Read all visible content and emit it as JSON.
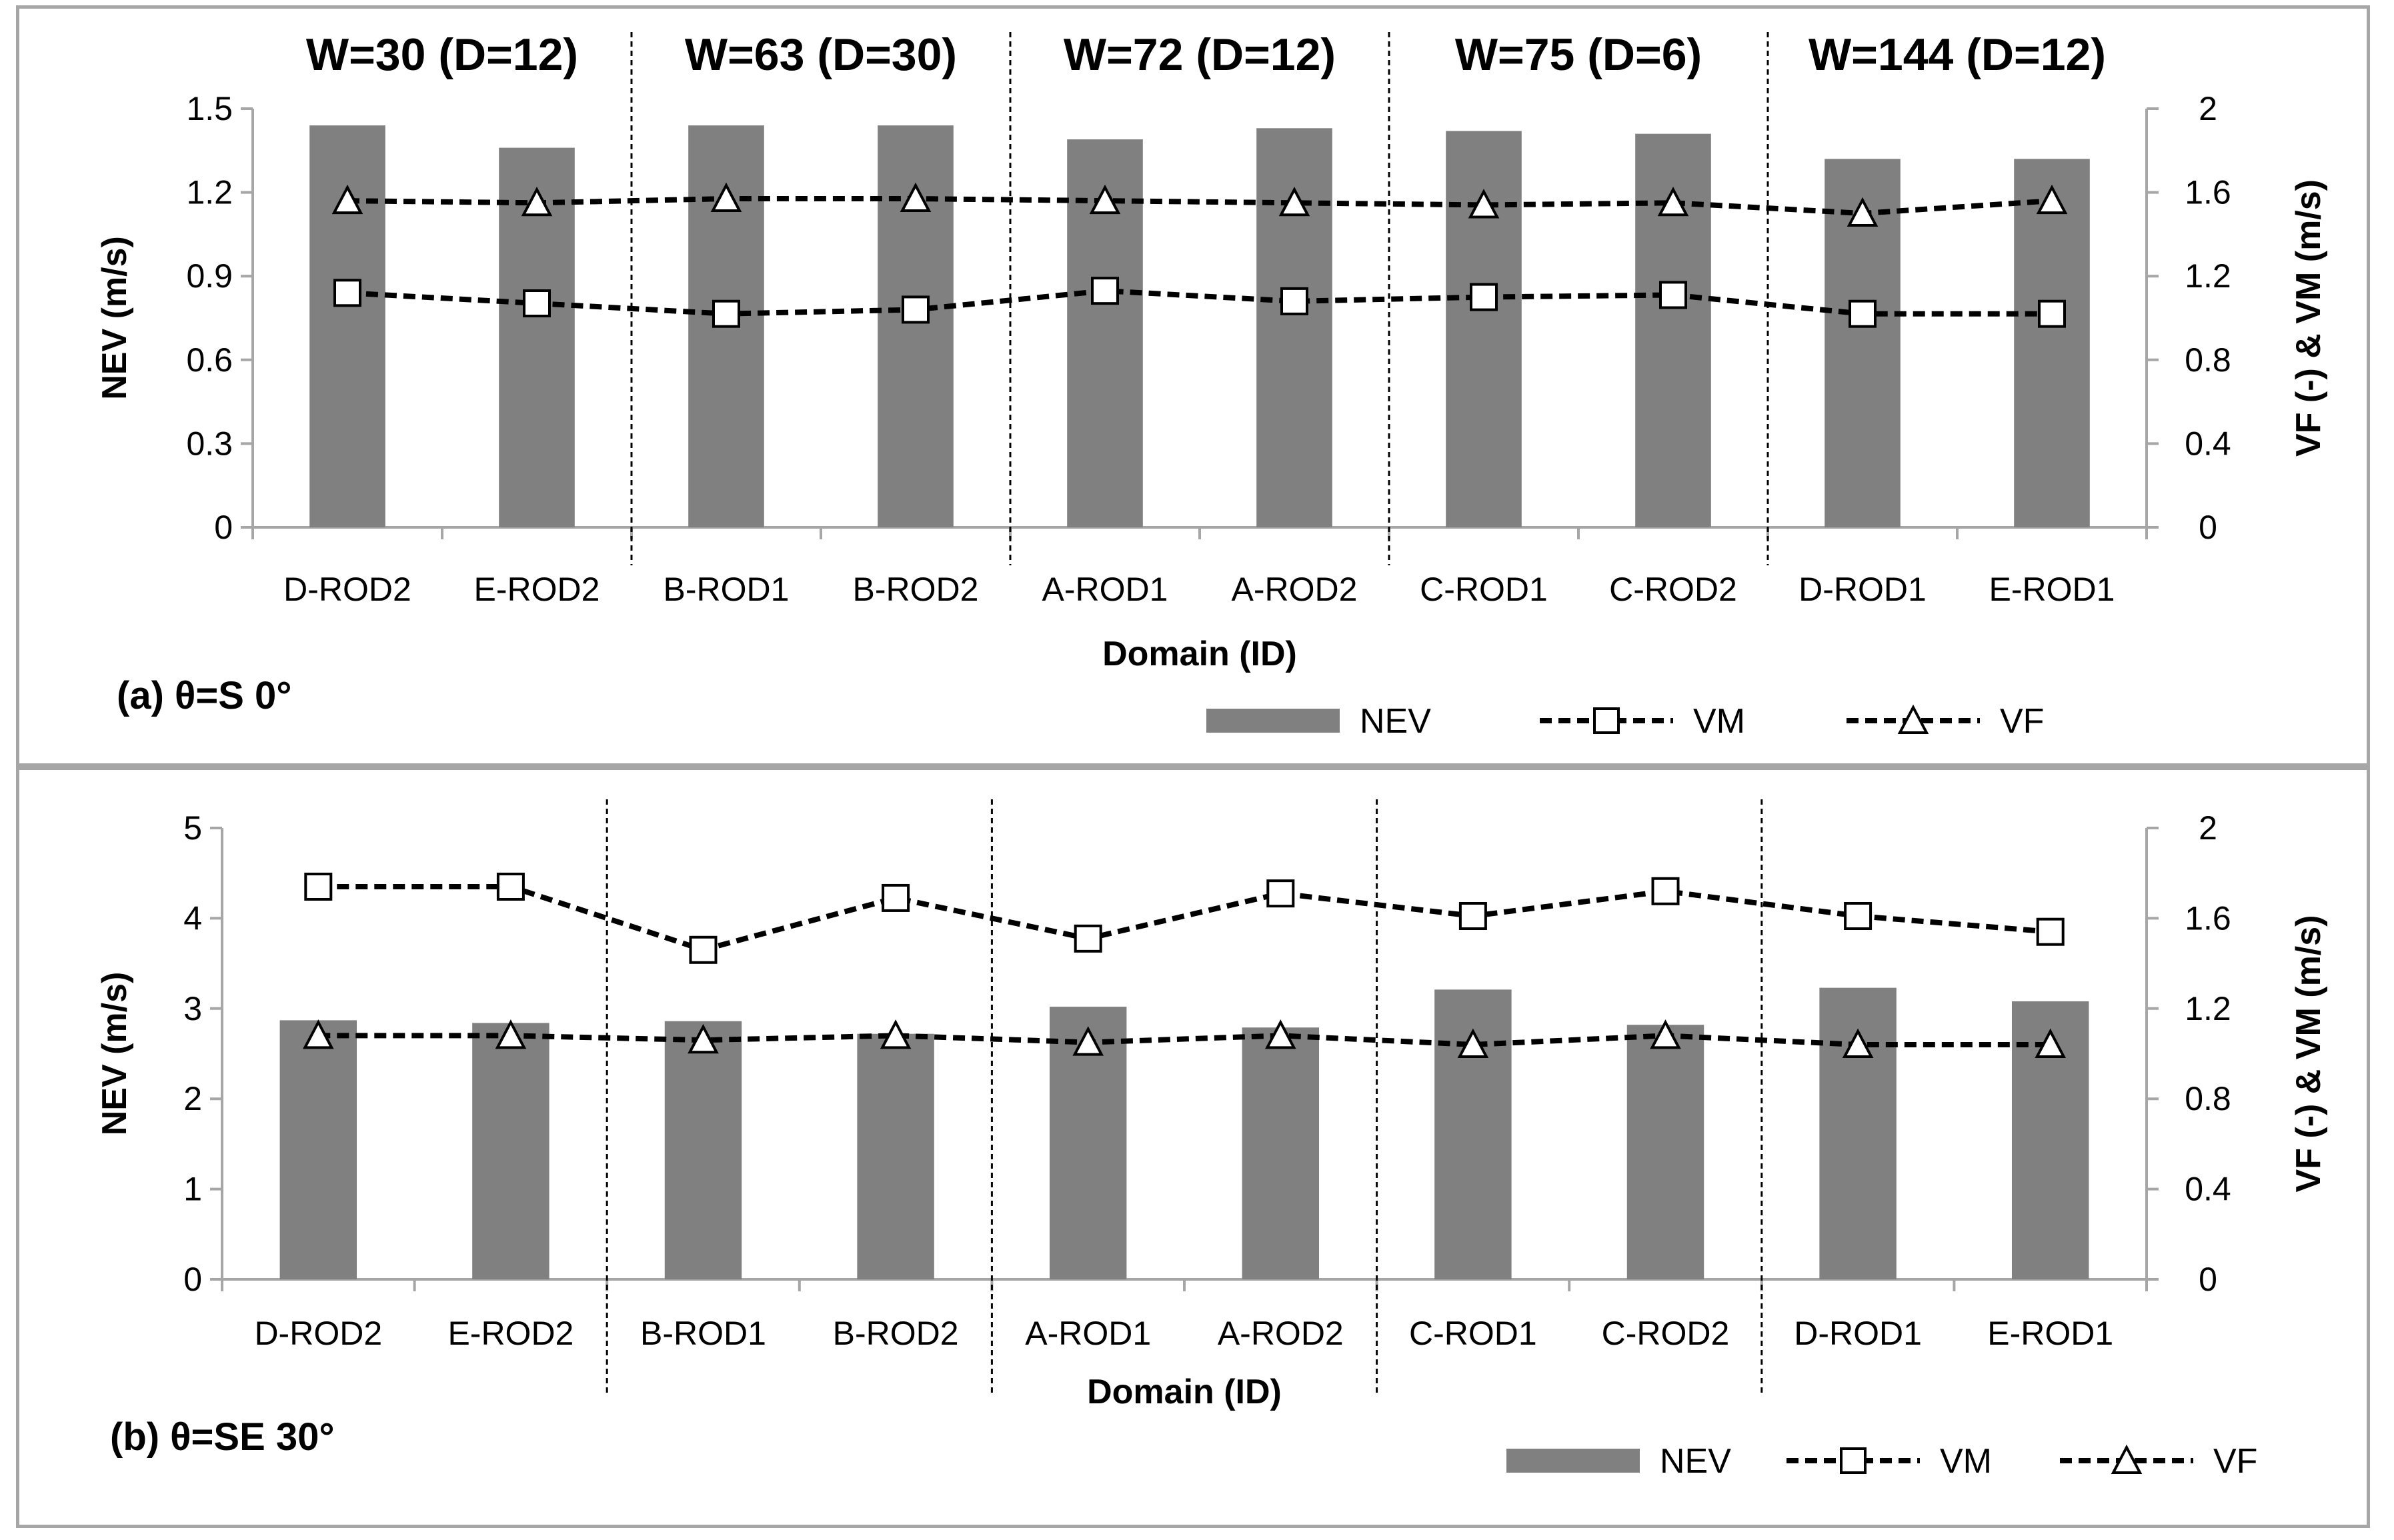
{
  "chart_data": [
    {
      "id": "panel-a",
      "type": "bar+line",
      "panel_label": "(a) θ=S 0°",
      "xlabel": "Domain (ID)",
      "ylabel_left": "NEV (m/s)",
      "ylabel_right": "VF (-) & VM (m/s)",
      "ylim_left": [
        0,
        1.5
      ],
      "yticks_left": [
        "0",
        "0.3",
        "0.6",
        "0.9",
        "1.2",
        "1.5"
      ],
      "ylim_right": [
        0,
        2
      ],
      "yticks_right": [
        "0",
        "0.4",
        "0.8",
        "1.2",
        "1.6",
        "2"
      ],
      "group_headers": [
        "W=30 (D=12)",
        "W=63 (D=30)",
        "W=72 (D=12)",
        "W=75 (D=6)",
        "W=144 (D=12)"
      ],
      "categories": [
        "D-ROD2",
        "E-ROD2",
        "B-ROD1",
        "B-ROD2",
        "A-ROD1",
        "A-ROD2",
        "C-ROD1",
        "C-ROD2",
        "D-ROD1",
        "E-ROD1"
      ],
      "series": [
        {
          "name": "NEV",
          "kind": "bar",
          "axis": "left",
          "values": [
            1.44,
            1.36,
            1.44,
            1.44,
            1.39,
            1.43,
            1.42,
            1.41,
            1.32,
            1.32
          ]
        },
        {
          "name": "VM",
          "kind": "line",
          "marker": "square",
          "axis": "right",
          "values": [
            1.12,
            1.07,
            1.02,
            1.04,
            1.13,
            1.08,
            1.1,
            1.11,
            1.02,
            1.02
          ]
        },
        {
          "name": "VF",
          "kind": "line",
          "marker": "triangle",
          "axis": "right",
          "values": [
            1.56,
            1.55,
            1.57,
            1.57,
            1.56,
            1.55,
            1.54,
            1.55,
            1.5,
            1.56
          ]
        }
      ],
      "legend": [
        "NEV",
        "VM",
        "VF"
      ]
    },
    {
      "id": "panel-b",
      "type": "bar+line",
      "panel_label": "(b) θ=SE 30°",
      "xlabel": "Domain (ID)",
      "ylabel_left": "NEV (m/s)",
      "ylabel_right": "VF (-) & VM (m/s)",
      "ylim_left": [
        0,
        5
      ],
      "yticks_left": [
        "0",
        "1",
        "2",
        "3",
        "4",
        "5"
      ],
      "ylim_right": [
        0,
        2
      ],
      "yticks_right": [
        "0",
        "0.4",
        "0.8",
        "1.2",
        "1.6",
        "2"
      ],
      "group_headers": [],
      "categories": [
        "D-ROD2",
        "E-ROD2",
        "B-ROD1",
        "B-ROD2",
        "A-ROD1",
        "A-ROD2",
        "C-ROD1",
        "C-ROD2",
        "D-ROD1",
        "E-ROD1"
      ],
      "series": [
        {
          "name": "NEV",
          "kind": "bar",
          "axis": "left",
          "values": [
            2.87,
            2.84,
            2.86,
            2.72,
            3.02,
            2.79,
            3.21,
            2.82,
            3.23,
            3.08
          ]
        },
        {
          "name": "VM",
          "kind": "line",
          "marker": "square",
          "axis": "right",
          "values": [
            1.74,
            1.74,
            1.46,
            1.69,
            1.51,
            1.71,
            1.61,
            1.72,
            1.61,
            1.54
          ]
        },
        {
          "name": "VF",
          "kind": "line",
          "marker": "triangle",
          "axis": "right",
          "values": [
            1.08,
            1.08,
            1.06,
            1.08,
            1.05,
            1.08,
            1.04,
            1.08,
            1.04,
            1.04
          ]
        }
      ],
      "legend": [
        "NEV",
        "VM",
        "VF"
      ]
    }
  ],
  "colors": {
    "bar": "#808080",
    "line": "#000000",
    "axis": "#a6a6a6",
    "border": "#a6a6a6"
  }
}
